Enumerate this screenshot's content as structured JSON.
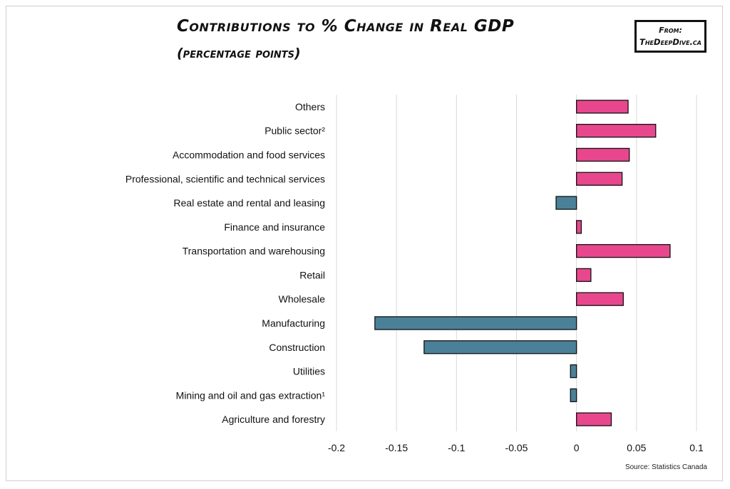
{
  "header": {
    "title": "Contributions to % Change in Real GDP",
    "subtitle": "(percentage points)",
    "badge_line1": "From:",
    "badge_line2": "TheDeepDive.ca"
  },
  "footer": {
    "source": "Source: Statistics Canada"
  },
  "colors": {
    "positive": "#e8478e",
    "negative": "#4a8199",
    "grid": "#d9d9d9",
    "bar_stroke": "#111111"
  },
  "chart_data": {
    "type": "bar",
    "orientation": "horizontal",
    "categories": [
      "Others",
      "Public sector²",
      "Accommodation and food services",
      "Professional, scientific and technical services",
      "Real estate and rental and leasing",
      "Finance and insurance",
      "Transportation and warehousing",
      "Retail",
      "Wholesale",
      "Manufacturing",
      "Construction",
      "Utilities",
      "Mining and oil and gas extraction¹",
      "Agriculture and forestry"
    ],
    "values": [
      0.043,
      0.066,
      0.044,
      0.038,
      -0.017,
      0.004,
      0.078,
      0.012,
      0.039,
      -0.168,
      -0.127,
      -0.005,
      -0.005,
      0.029
    ],
    "xlim": [
      -0.2,
      0.1
    ],
    "xticks": [
      -0.2,
      -0.15,
      -0.1,
      -0.05,
      0,
      0.05,
      0.1
    ],
    "xtick_labels": [
      "-0.2",
      "-0.15",
      "-0.1",
      "-0.05",
      "0",
      "0.05",
      "0.1"
    ],
    "grid": "vertical",
    "legend": "none"
  }
}
